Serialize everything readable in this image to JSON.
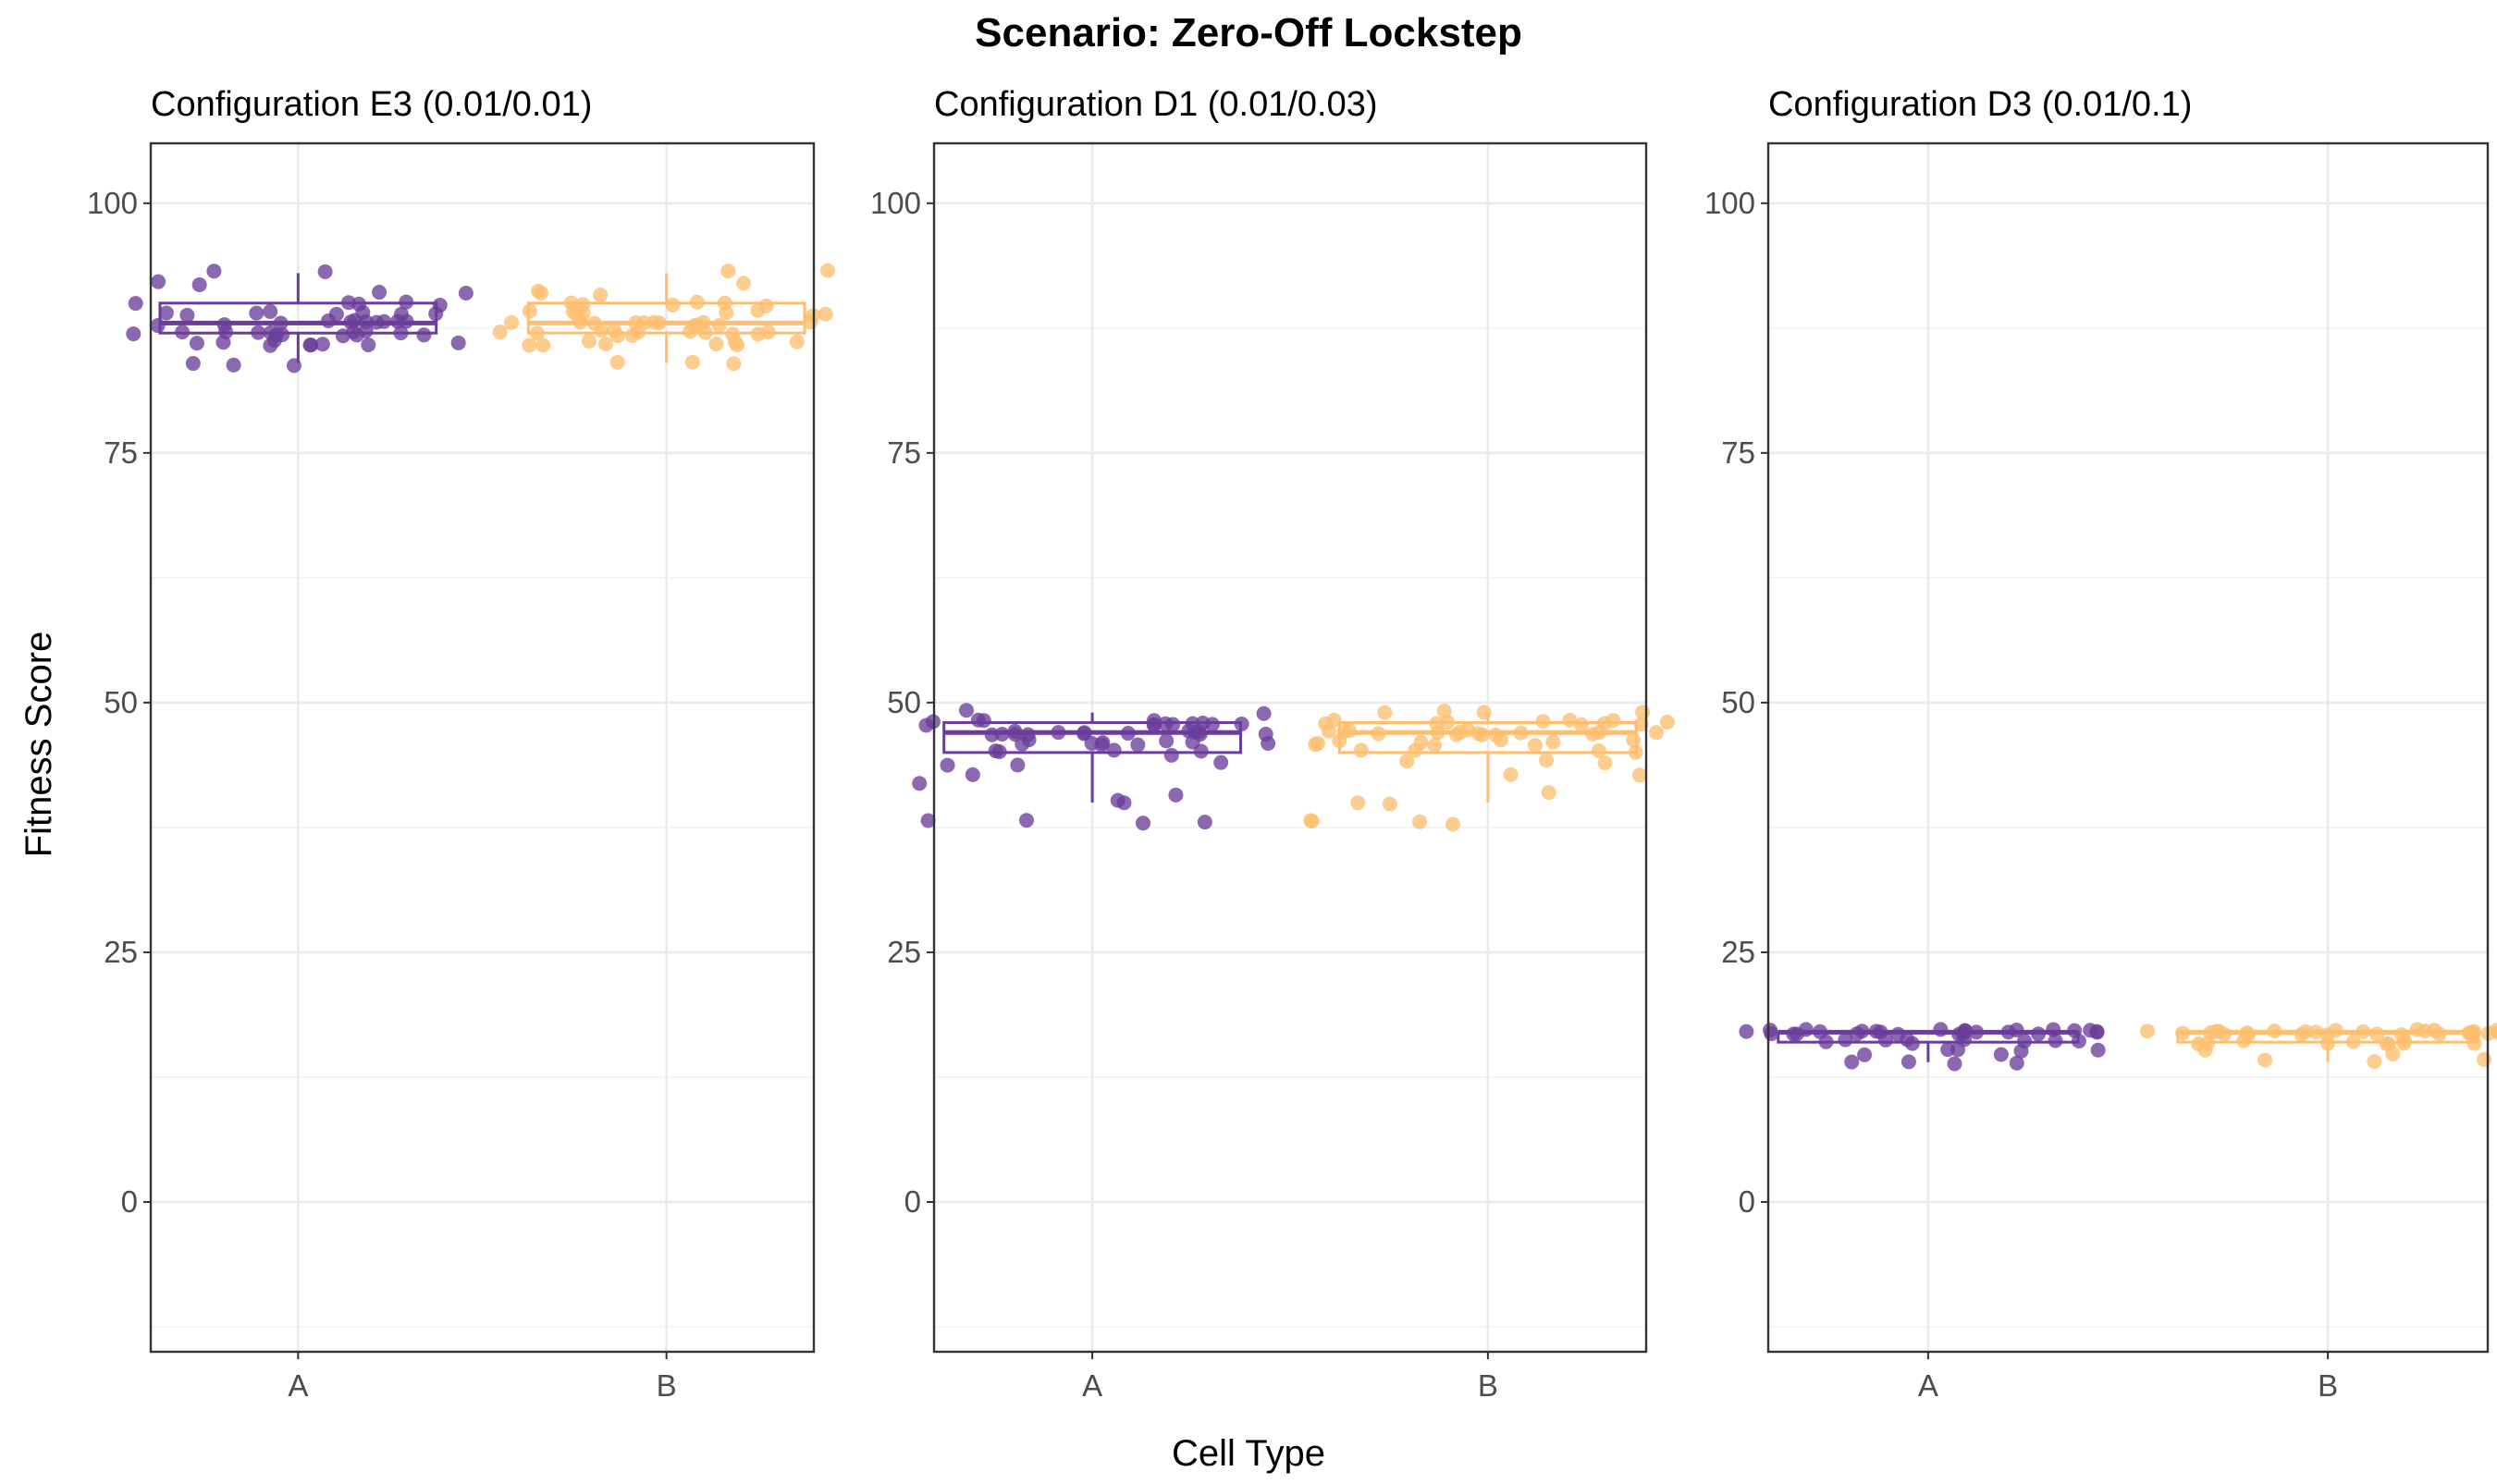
{
  "chart_data": {
    "type": "boxplot_jitter",
    "title": "Scenario: Zero-Off Lockstep",
    "xlabel": "Cell Type",
    "ylabel": "Fitness Score",
    "categories": [
      "A",
      "B"
    ],
    "ylim": [
      -15,
      106
    ],
    "yticks": [
      0,
      25,
      50,
      75,
      100
    ],
    "grid": true,
    "colors": {
      "A": "#6a3d9a",
      "B": "#fdbf6f"
    },
    "panels": [
      {
        "title": "Configuration E3 (0.01/0.01)",
        "groups": [
          {
            "name": "A",
            "box": {
              "whisker_low": 84,
              "q1": 87,
              "median": 88,
              "q3": 90,
              "whisker_high": 93
            },
            "points": [
              88,
              87,
              90,
              89,
              86,
              91,
              88,
              93,
              92,
              87,
              89,
              88,
              86,
              90,
              87,
              88,
              87,
              89,
              86,
              88,
              87,
              90,
              86,
              87,
              88,
              89,
              88,
              87,
              86,
              86,
              93,
              88,
              87,
              89,
              87,
              86,
              89,
              90,
              88,
              87,
              84,
              86,
              89,
              87,
              90,
              89,
              88,
              91,
              84,
              87,
              86,
              88,
              92,
              87,
              84
            ]
          },
          {
            "name": "B",
            "box": {
              "whisker_low": 84,
              "q1": 87,
              "median": 88,
              "q3": 90,
              "whisker_high": 93
            },
            "points": [
              89,
              88,
              87,
              86,
              90,
              88,
              87,
              89,
              86,
              90,
              88,
              93,
              87,
              89,
              86,
              84,
              88,
              87,
              89,
              90,
              87,
              88,
              86,
              87,
              88,
              89,
              91,
              87,
              86,
              90,
              88,
              86,
              87,
              89,
              88,
              90,
              91,
              88,
              92,
              87,
              86,
              89,
              91,
              88,
              84,
              84,
              88,
              90,
              89,
              87,
              86,
              88,
              87,
              93,
              87
            ]
          }
        ]
      },
      {
        "title": "Configuration D1 (0.01/0.03)",
        "groups": [
          {
            "name": "A",
            "box": {
              "whisker_low": 40,
              "q1": 45,
              "median": 47,
              "q3": 48,
              "whisker_high": 49
            },
            "points": [
              43,
              44,
              45,
              47,
              48,
              46,
              47,
              45,
              48,
              42,
              47,
              41,
              46,
              48,
              47,
              45,
              47,
              48,
              46,
              48,
              47,
              49,
              45,
              47,
              48,
              46,
              48,
              47,
              46,
              40,
              38,
              38,
              38,
              40,
              46,
              48,
              47,
              45,
              48,
              47,
              49,
              47,
              46,
              48,
              47,
              38,
              44,
              46,
              44,
              48,
              47,
              48,
              46,
              48,
              47
            ]
          },
          {
            "name": "B",
            "box": {
              "whisker_low": 40,
              "q1": 45,
              "median": 47,
              "q3": 48,
              "whisker_high": 49
            },
            "points": [
              41,
              45,
              46,
              47,
              48,
              47,
              49,
              46,
              47,
              49,
              48,
              46,
              47,
              48,
              45,
              47,
              44,
              44,
              46,
              47,
              48,
              47,
              48,
              46,
              38,
              47,
              48,
              49,
              40,
              38,
              38,
              47,
              48,
              46,
              47,
              45,
              47,
              48,
              46,
              45,
              48,
              49,
              47,
              46,
              43,
              48,
              47,
              40,
              46,
              47,
              38,
              47,
              48,
              44,
              43
            ]
          }
        ]
      },
      {
        "title": "Configuration D3 (0.01/0.1)",
        "groups": [
          {
            "name": "A",
            "box": {
              "whisker_low": 14,
              "q1": 16,
              "median": 17,
              "q3": 17,
              "whisker_high": 17
            },
            "points": [
              15,
              17,
              14,
              17,
              16,
              17,
              17,
              15,
              17,
              17,
              16,
              17,
              17,
              14,
              15,
              16,
              17,
              17,
              16,
              17,
              17,
              16,
              15,
              17,
              17,
              16,
              17,
              14,
              17,
              17,
              16,
              17,
              17,
              15,
              17,
              17,
              17,
              14,
              17,
              16,
              17,
              17,
              15,
              17,
              16
            ]
          },
          {
            "name": "B",
            "box": {
              "whisker_low": 14,
              "q1": 16,
              "median": 17,
              "q3": 17,
              "whisker_high": 17
            },
            "points": [
              17,
              17,
              17,
              16,
              17,
              17,
              16,
              17,
              17,
              17,
              16,
              17,
              17,
              17,
              15,
              17,
              17,
              16,
              17,
              17,
              17,
              16,
              17,
              14,
              15,
              16,
              17,
              17,
              17,
              16,
              17,
              15,
              14,
              17,
              16,
              17,
              17,
              17,
              16,
              17,
              17,
              14,
              17,
              16,
              17
            ]
          }
        ]
      }
    ]
  }
}
